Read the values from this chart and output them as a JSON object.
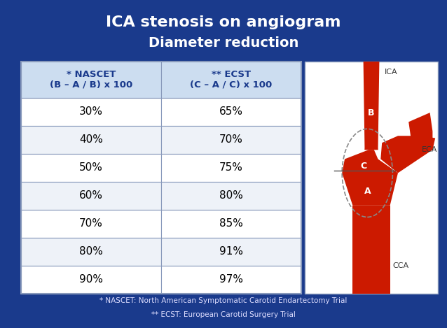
{
  "title_line1": "ICA stenosis on angiogram",
  "title_line2": "Diameter reduction",
  "bg_color": "#1a3a8c",
  "table_header_col1": "* NASCET\n(B – A / B) x 100",
  "table_header_col2": "** ECST\n(C – A / C) x 100",
  "nascet_values": [
    "30%",
    "40%",
    "50%",
    "60%",
    "70%",
    "80%",
    "90%"
  ],
  "ecst_values": [
    "65%",
    "70%",
    "75%",
    "80%",
    "85%",
    "91%",
    "97%"
  ],
  "footnote1": "* NASCET: North American Symptomatic Carotid Endartectomy Trial",
  "footnote2": "** ECST: European Carotid Surgery Trial",
  "header_bg": "#ccddf0",
  "row_bg_even": "#ffffff",
  "row_bg_odd": "#eef2f8",
  "table_border_color": "#8899bb",
  "header_text_color": "#1a3a8c",
  "cell_text_color": "#000000",
  "title_color": "#ffffff",
  "footnote_color": "#ddddff",
  "artery_red": "#cc1a00",
  "artery_bg": "#ffffff",
  "diagram_bg": "#ffffff"
}
